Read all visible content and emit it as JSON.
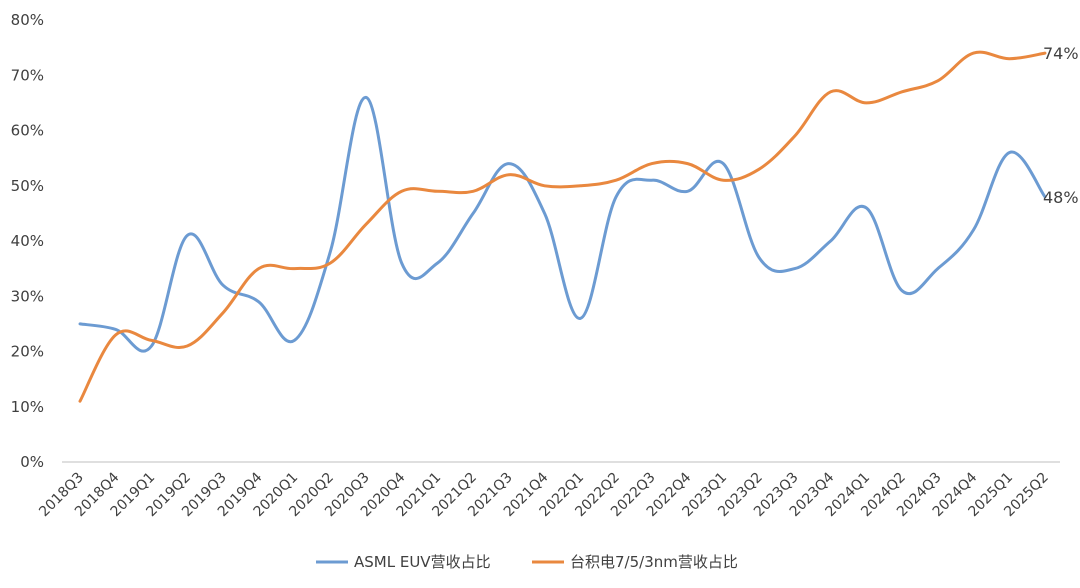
{
  "chart_data": {
    "type": "line",
    "categories": [
      "2018Q3",
      "2018Q4",
      "2019Q1",
      "2019Q2",
      "2019Q3",
      "2019Q4",
      "2020Q1",
      "2020Q2",
      "2020Q3",
      "2020Q4",
      "2021Q1",
      "2021Q2",
      "2021Q3",
      "2021Q4",
      "2022Q1",
      "2022Q2",
      "2022Q3",
      "2022Q4",
      "2023Q1",
      "2023Q2",
      "2023Q3",
      "2023Q4",
      "2024Q1",
      "2024Q2",
      "2024Q3",
      "2024Q4",
      "2025Q1",
      "2025Q2"
    ],
    "y_ticks": [
      "0%",
      "10%",
      "20%",
      "30%",
      "40%",
      "50%",
      "60%",
      "70%",
      "80%"
    ],
    "ylim": [
      0,
      80
    ],
    "grid": false,
    "legend_position": "bottom",
    "series": [
      {
        "name": "ASML EUV营收占比",
        "color": "#6C9BD2",
        "values": [
          25,
          24,
          21,
          41,
          32,
          29,
          22,
          38,
          66,
          36,
          36,
          45,
          54,
          45,
          26,
          48,
          51,
          49,
          54,
          37,
          35,
          40,
          46,
          31,
          35,
          42,
          56,
          48
        ],
        "end_label": "48%"
      },
      {
        "name": "台积电7/5/3nm营收占比",
        "color": "#E9883F",
        "values": [
          11,
          23,
          22,
          21,
          27,
          35,
          35,
          36,
          43,
          49,
          49,
          49,
          52,
          50,
          50,
          51,
          54,
          54,
          51,
          53,
          59,
          67,
          65,
          67,
          69,
          74,
          73,
          74
        ],
        "end_label": "74%"
      }
    ]
  }
}
